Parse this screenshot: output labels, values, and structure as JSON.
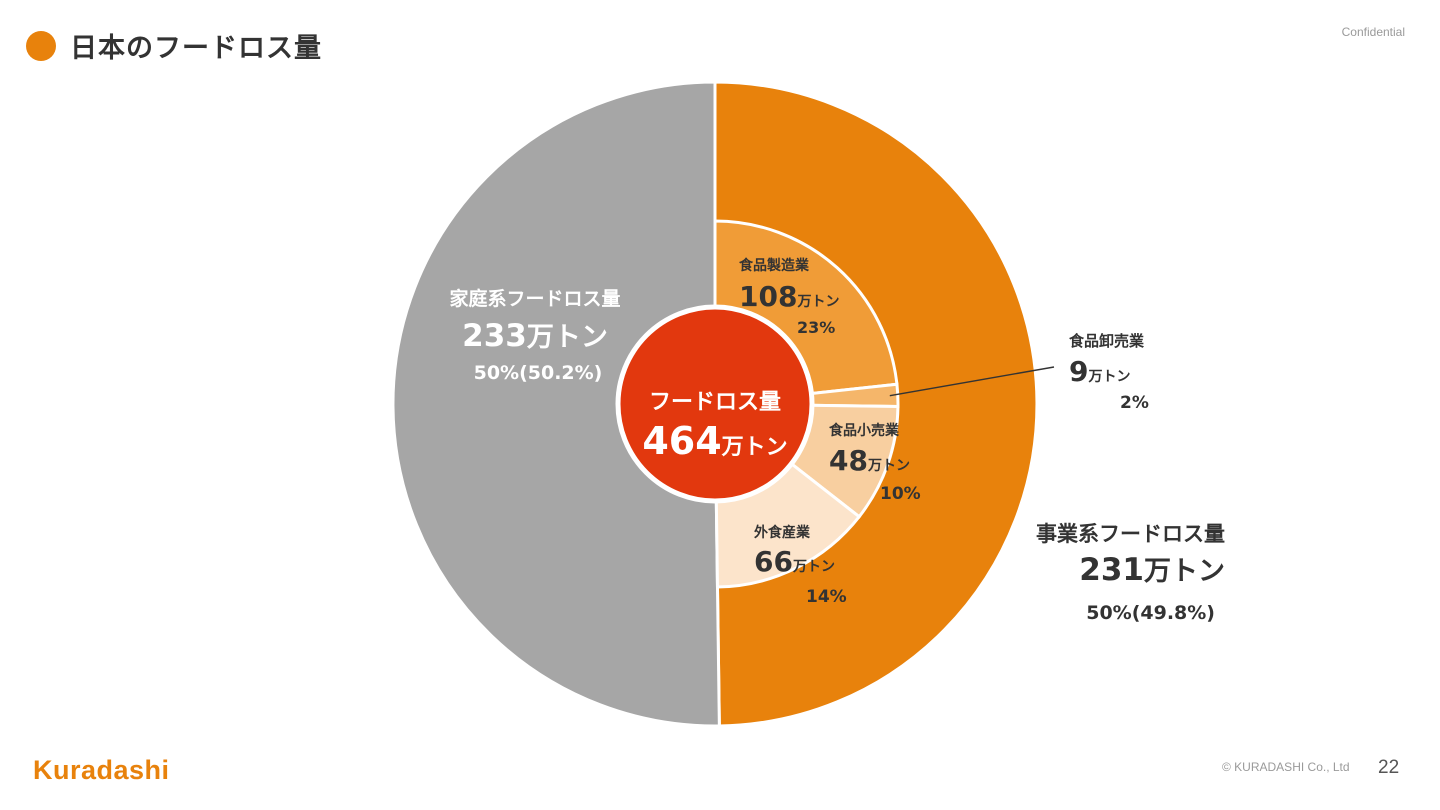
{
  "page": {
    "title": "日本のフードロス量",
    "confidential": "Confidential",
    "logo": "Kuradashi",
    "copyright": "© KURADASHI Co., Ltd",
    "page_number": "22"
  },
  "colors": {
    "accent": "#E8820C",
    "household": "#A6A6A6",
    "center": "#E2380E"
  },
  "chart_data": {
    "type": "pie",
    "unit": "万トン",
    "center": {
      "label": "フードロス量",
      "value": 464,
      "value_text": "464",
      "unit": "万トン"
    },
    "outer": [
      {
        "name": "事業系フードロス量",
        "value": 231,
        "value_text": "231",
        "unit": "万トン",
        "percent": "50%(49.8%)",
        "color": "#E8820C"
      },
      {
        "name": "家庭系フードロス量",
        "value": 233,
        "value_text": "233",
        "unit": "万トン",
        "percent": "50%(50.2%)",
        "color": "#A6A6A6"
      }
    ],
    "inner": [
      {
        "name": "食品製造業",
        "value": 108,
        "value_text": "108",
        "unit": "万トン",
        "percent": "23%",
        "color": "#F09C37"
      },
      {
        "name": "食品卸売業",
        "value": 9,
        "value_text": "9",
        "unit": "万トン",
        "percent": "2%",
        "color": "#F5B66A"
      },
      {
        "name": "食品小売業",
        "value": 48,
        "value_text": "48",
        "unit": "万トン",
        "percent": "10%",
        "color": "#F8CFA0"
      },
      {
        "name": "外食産業",
        "value": 66,
        "value_text": "66",
        "unit": "万トン",
        "percent": "14%",
        "color": "#FCE4CB"
      }
    ]
  }
}
